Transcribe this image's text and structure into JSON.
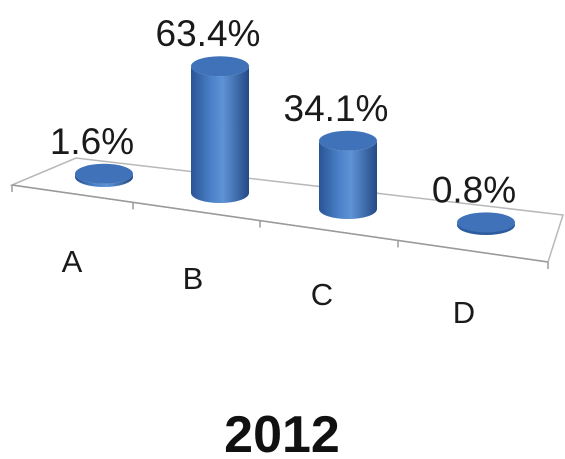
{
  "chart_data": {
    "type": "bar",
    "style": "3d-cylinder",
    "title": "2012",
    "categories": [
      "A",
      "B",
      "C",
      "D"
    ],
    "values": [
      1.6,
      63.4,
      34.1,
      0.8
    ],
    "data_labels": [
      "1.6%",
      "63.4%",
      "34.1%",
      "0.8%"
    ],
    "unit": "%",
    "ylim": [
      0,
      70
    ],
    "grid": false,
    "legend": "none",
    "bar_color": "#3f72b8"
  }
}
